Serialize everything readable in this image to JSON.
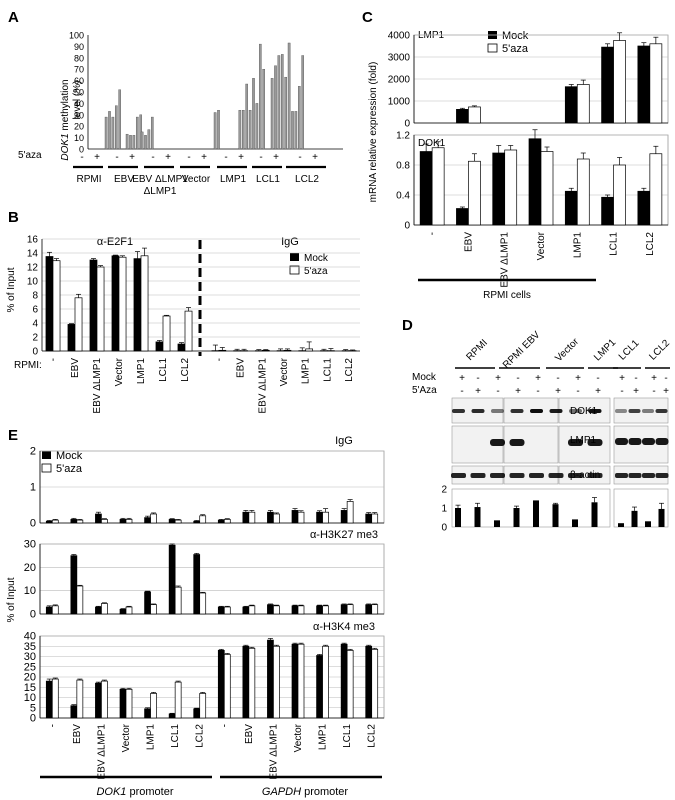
{
  "panels": {
    "A": {
      "letter": "A",
      "ylabel_gene": "DOK1",
      "ylabel_rest": " methylation",
      "ylabel2": "level (%)",
      "aza_label": "5'aza",
      "groups": [
        "RPMI",
        "EBV",
        "EBV",
        "Vector",
        "LMP1",
        "LCL1",
        "LCL2"
      ],
      "groups_line2": [
        "",
        "",
        "ΔLMP1",
        "",
        "",
        "",
        ""
      ],
      "signs": [
        "-",
        "+"
      ]
    },
    "B": {
      "letter": "B",
      "sub_left": "α-E2F1",
      "sub_right": "IgG",
      "ylabel": "% of Input",
      "row_label": "RPMI:",
      "legend": [
        "Mock",
        "5'aza"
      ],
      "categories": [
        "-",
        "EBV",
        "EBV ΔLMP1",
        "Vector",
        "LMP1",
        "LCL1",
        "LCL2"
      ]
    },
    "C": {
      "letter": "C",
      "ylabel": "mRNA relative expression (fold)",
      "top_label": "LMP1",
      "bottom_label": "DOK1",
      "legend": [
        "Mock",
        "5'aza"
      ],
      "categories": [
        "-",
        "EBV",
        "EBV ΔLMP1",
        "Vector",
        "LMP1",
        "LCL1",
        "LCL2"
      ],
      "footer": "RPMI cells"
    },
    "D": {
      "letter": "D",
      "groups_left": [
        "RPMI",
        "RPMI EBV",
        "Vector",
        "LMP1"
      ],
      "groups_right": [
        "LCL1",
        "LCL2"
      ],
      "row_mock": "Mock",
      "row_aza": "5'Aza",
      "bands": [
        "DOK1",
        "LMP1",
        "β-actin"
      ],
      "signs": [
        "+",
        "-"
      ]
    },
    "E": {
      "letter": "E",
      "sub1": "IgG",
      "sub2": "α-H3K27 me3",
      "sub3": "α-H3K4 me3",
      "ylabel": "% of Input",
      "legend": [
        "Mock",
        "5'aza"
      ],
      "categories": [
        "-",
        "EBV",
        "EBV ΔLMP1",
        "Vector",
        "LMP1",
        "LCL1",
        "LCL2",
        "-",
        "EBV",
        "EBV ΔLMP1",
        "Vector",
        "LMP1",
        "LCL1",
        "LCL2"
      ],
      "footer_left_gene": "DOK1",
      "footer_left_rest": " promoter",
      "footer_right_gene": "GAPDH",
      "footer_right_rest": " promoter"
    }
  },
  "chart_data": [
    {
      "panel": "A",
      "type": "bar",
      "title": "",
      "ylabel": "DOK1 methylation level (%)",
      "ylim": [
        0,
        100
      ],
      "yticks": [
        0,
        10,
        20,
        30,
        40,
        50,
        60,
        70,
        80,
        90,
        100
      ],
      "groups": [
        "RPMI",
        "EBV",
        "EBV ΔLMP1",
        "Vector",
        "LMP1",
        "LCL1",
        "LCL2"
      ],
      "series": [
        {
          "condition": "-",
          "values": [
            [
              0,
              0,
              0,
              0,
              0
            ],
            [
              28,
              33,
              28,
              38,
              52
            ],
            [
              15,
              12,
              17,
              28,
              0
            ],
            [
              0,
              0,
              0,
              0,
              0
            ],
            [
              32,
              34,
              0,
              0,
              0
            ],
            [
              34,
              34,
              57,
              34,
              62,
              40,
              92,
              70
            ],
            [
              62,
              73,
              82,
              83,
              63,
              93,
              33,
              33,
              55,
              82
            ]
          ]
        },
        {
          "condition": "+",
          "values": [
            [
              0,
              0,
              0,
              0,
              0
            ],
            [
              13,
              12,
              12,
              28,
              30
            ],
            [
              0,
              0,
              0,
              0,
              0
            ],
            [
              0,
              0,
              0,
              0,
              0
            ],
            [
              0,
              0,
              0,
              0,
              0
            ],
            [
              0,
              0,
              0,
              0,
              0,
              0,
              0,
              0
            ],
            [
              0,
              0,
              0,
              0,
              0,
              0,
              0,
              0,
              0,
              0
            ]
          ]
        }
      ]
    },
    {
      "panel": "B",
      "type": "bar",
      "ylabel": "% of Input",
      "ylim": [
        0,
        16
      ],
      "yticks": [
        0,
        2,
        4,
        6,
        8,
        10,
        12,
        14,
        16
      ],
      "categories": [
        "-",
        "EBV",
        "EBV ΔLMP1",
        "Vector",
        "LMP1",
        "LCL1",
        "LCL2"
      ],
      "series": [
        {
          "name": "Mock",
          "values": [
            13.5,
            3.8,
            13.0,
            13.6,
            13.2,
            1.3,
            1.0
          ],
          "errors": [
            0.6,
            0.1,
            0.2,
            0.1,
            1.0,
            0.2,
            0.2
          ]
        },
        {
          "name": "5'aza",
          "values": [
            12.9,
            7.6,
            12.0,
            13.4,
            13.6,
            5.0,
            5.7
          ],
          "errors": [
            0.3,
            0.5,
            0.2,
            0.2,
            1.1,
            0.1,
            0.5
          ]
        },
        {
          "name": "IgG Mock",
          "values": [
            0.05,
            0.05,
            0.05,
            0.05,
            0.05,
            0.05,
            0.05
          ],
          "errors": [
            0.8,
            0.2,
            0.15,
            0.25,
            0.4,
            0.2,
            0.15
          ]
        },
        {
          "name": "IgG 5'aza",
          "values": [
            0.1,
            0.05,
            0.1,
            0.1,
            0.3,
            0.05,
            0.05
          ],
          "errors": [
            0.4,
            0.2,
            0.1,
            0.2,
            1.0,
            0.3,
            0.1
          ]
        }
      ]
    },
    {
      "panel": "C",
      "subplot": "LMP1",
      "type": "bar",
      "ylim": [
        0,
        4000
      ],
      "yticks": [
        0,
        1000,
        2000,
        3000,
        4000
      ],
      "categories": [
        "-",
        "EBV",
        "EBV ΔLMP1",
        "Vector",
        "LMP1",
        "LCL1",
        "LCL2"
      ],
      "series": [
        {
          "name": "Mock",
          "values": [
            0,
            620,
            0,
            0,
            1650,
            3450,
            3500
          ],
          "errors": [
            0,
            50,
            0,
            0,
            100,
            150,
            150
          ]
        },
        {
          "name": "5'aza",
          "values": [
            0,
            730,
            0,
            0,
            1750,
            3750,
            3600
          ],
          "errors": [
            0,
            50,
            0,
            0,
            200,
            350,
            300
          ]
        }
      ]
    },
    {
      "panel": "C",
      "subplot": "DOK1",
      "type": "bar",
      "ylim": [
        0,
        1.2
      ],
      "yticks": [
        0,
        0.4,
        0.8,
        1.2
      ],
      "categories": [
        "-",
        "EBV",
        "EBV ΔLMP1",
        "Vector",
        "LMP1",
        "LCL1",
        "LCL2"
      ],
      "series": [
        {
          "name": "Mock",
          "values": [
            0.98,
            0.22,
            0.96,
            1.15,
            0.45,
            0.37,
            0.45
          ],
          "errors": [
            0.1,
            0.02,
            0.1,
            0.12,
            0.04,
            0.03,
            0.04
          ]
        },
        {
          "name": "5'aza",
          "values": [
            1.03,
            0.85,
            1.0,
            0.98,
            0.88,
            0.8,
            0.95
          ],
          "errors": [
            0.08,
            0.1,
            0.06,
            0.06,
            0.08,
            0.1,
            0.1
          ]
        }
      ]
    },
    {
      "panel": "D",
      "type": "bar",
      "ylim": [
        0,
        2
      ],
      "yticks": [
        0,
        1,
        2
      ],
      "lanes_left": [
        1.0,
        1.05,
        0.35,
        1.0,
        1.4,
        1.2,
        0.4,
        1.3
      ],
      "errors_left": [
        0.15,
        0.2,
        0,
        0.1,
        0,
        0.05,
        0,
        0.25
      ],
      "lanes_right": [
        0.2,
        0.85,
        0.3,
        0.95
      ],
      "errors_right": [
        0,
        0.2,
        0,
        0.3
      ]
    },
    {
      "panel": "E",
      "subplot": "IgG",
      "type": "bar",
      "ylim": [
        0,
        2
      ],
      "yticks": [
        0,
        1,
        2
      ],
      "categories": [
        "-",
        "EBV",
        "EBV ΔLMP1",
        "Vector",
        "LMP1",
        "LCL1",
        "LCL2",
        "-",
        "EBV",
        "EBV ΔLMP1",
        "Vector",
        "LMP1",
        "LCL1",
        "LCL2"
      ],
      "series": [
        {
          "name": "Mock",
          "values": [
            0.05,
            0.1,
            0.25,
            0.1,
            0.15,
            0.1,
            0.05,
            0.08,
            0.3,
            0.3,
            0.35,
            0.3,
            0.35,
            0.25
          ],
          "errors": [
            0.02,
            0.03,
            0.05,
            0.03,
            0.04,
            0.02,
            0.02,
            0.02,
            0.05,
            0.05,
            0.05,
            0.04,
            0.05,
            0.04
          ]
        },
        {
          "name": "5'aza",
          "values": [
            0.08,
            0.08,
            0.1,
            0.1,
            0.25,
            0.08,
            0.2,
            0.1,
            0.3,
            0.25,
            0.3,
            0.3,
            0.6,
            0.25
          ],
          "errors": [
            0.02,
            0.02,
            0.02,
            0.03,
            0.03,
            0.02,
            0.03,
            0.02,
            0.05,
            0.03,
            0.04,
            0.1,
            0.05,
            0.04
          ]
        }
      ]
    },
    {
      "panel": "E",
      "subplot": "α-H3K27 me3",
      "type": "bar",
      "ylim": [
        0,
        30
      ],
      "yticks": [
        0,
        10,
        20,
        30
      ],
      "categories": [
        "-",
        "EBV",
        "EBV ΔLMP1",
        "Vector",
        "LMP1",
        "LCL1",
        "LCL2",
        "-",
        "EBV",
        "EBV ΔLMP1",
        "Vector",
        "LMP1",
        "LCL1",
        "LCL2"
      ],
      "series": [
        {
          "name": "Mock",
          "values": [
            3,
            25,
            3,
            2,
            9.5,
            29.5,
            25.5,
            3,
            3,
            4,
            3.5,
            3.5,
            4,
            4
          ],
          "errors": [
            0.5,
            0.5,
            0.3,
            0.3,
            0.3,
            0.5,
            0.5,
            0.3,
            0.3,
            0.3,
            0.3,
            0.3,
            0.3,
            0.3
          ]
        },
        {
          "name": "5'aza",
          "values": [
            3.5,
            12,
            4.5,
            3,
            4,
            11.5,
            9,
            3,
            3.5,
            3.5,
            3.5,
            3.5,
            4,
            4
          ],
          "errors": [
            0.4,
            0.3,
            0.3,
            0.3,
            0.3,
            0.5,
            0.3,
            0.3,
            0.3,
            0.3,
            0.3,
            0.3,
            0.3,
            0.3
          ]
        }
      ]
    },
    {
      "panel": "E",
      "subplot": "α-H3K4 me3",
      "type": "bar",
      "ylim": [
        0,
        40
      ],
      "yticks": [
        0,
        5,
        10,
        15,
        20,
        25,
        30,
        35,
        40
      ],
      "categories": [
        "-",
        "EBV",
        "EBV ΔLMP1",
        "Vector",
        "LMP1",
        "LCL1",
        "LCL2",
        "-",
        "EBV",
        "EBV ΔLMP1",
        "Vector",
        "LMP1",
        "LCL1",
        "LCL2"
      ],
      "series": [
        {
          "name": "Mock",
          "values": [
            18,
            6,
            17,
            14,
            4.5,
            2,
            4.5,
            33,
            35,
            38,
            36,
            30.5,
            36,
            35
          ],
          "errors": [
            1,
            0.5,
            0.5,
            0.5,
            0.5,
            0.3,
            0.3,
            0.5,
            0.5,
            0.8,
            0.5,
            0.5,
            0.5,
            0.5
          ]
        },
        {
          "name": "5'aza",
          "values": [
            19,
            18.5,
            18,
            14,
            12,
            17.5,
            12,
            31,
            34,
            35,
            36,
            35,
            33,
            33.5
          ],
          "errors": [
            0.5,
            0.5,
            0.5,
            0.5,
            0.5,
            0.5,
            0.5,
            0.5,
            0.5,
            0.5,
            0.5,
            0.5,
            0.5,
            0.5
          ]
        }
      ]
    }
  ]
}
